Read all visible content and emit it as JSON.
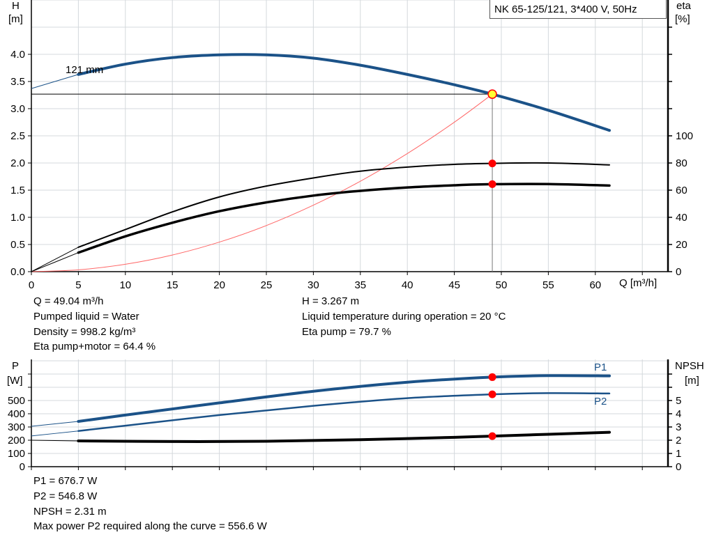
{
  "title": "NK 65-125/121, 3*400 V, 50Hz",
  "colors": {
    "pump_curve": "#1b5288",
    "efficiency": "#000000",
    "system_curve": "#ff6666",
    "marker": "#ff0000",
    "operating_point_fill": "#ffff33",
    "grid": "#d4d8dc"
  },
  "chart_data": [
    {
      "type": "line",
      "xlabel": "Q [m³/h]",
      "ylabel": "H",
      "yunit": "[m]",
      "y2label": "eta",
      "y2unit": "[%]",
      "xlim": [
        0,
        67.5
      ],
      "ylim": [
        0,
        5
      ],
      "y2lim": [
        0,
        200
      ],
      "grid": true,
      "x_ticks": [
        "0",
        "5",
        "10",
        "15",
        "20",
        "25",
        "30",
        "35",
        "40",
        "45",
        "50",
        "55",
        "60"
      ],
      "y_ticks": [
        "0.0",
        "0.5",
        "1.0",
        "1.5",
        "2.0",
        "2.5",
        "3.0",
        "3.5",
        "4.0"
      ],
      "y2_ticks": [
        "0",
        "20",
        "40",
        "60",
        "80",
        "100"
      ],
      "curve_label": "121 mm",
      "series": [
        {
          "id": "head",
          "axis": "left",
          "x": [
            0,
            5,
            10,
            15,
            20,
            25,
            30,
            35,
            40,
            45,
            49.04,
            55,
            61.5
          ],
          "y": [
            3.37,
            3.63,
            3.82,
            3.94,
            3.99,
            3.99,
            3.93,
            3.8,
            3.63,
            3.44,
            3.267,
            2.97,
            2.6
          ]
        },
        {
          "id": "eta_pump",
          "axis": "right",
          "x": [
            0,
            5,
            10,
            15,
            20,
            25,
            30,
            35,
            40,
            45,
            49.04,
            55,
            61.5
          ],
          "y": [
            0,
            18,
            31,
            44,
            55,
            63,
            69,
            74,
            77,
            79,
            79.7,
            80,
            78.6
          ]
        },
        {
          "id": "eta_pump_motor",
          "axis": "right",
          "x": [
            0,
            5,
            10,
            15,
            20,
            25,
            30,
            35,
            40,
            45,
            49.04,
            55,
            61.5
          ],
          "y": [
            0,
            14,
            26,
            36,
            44.5,
            51,
            56,
            59.5,
            62,
            63.6,
            64.4,
            64.5,
            63.4
          ]
        },
        {
          "id": "system_curve",
          "axis": "left",
          "x": [
            0,
            5,
            10,
            15,
            20,
            25,
            30,
            35,
            40,
            45,
            49.04
          ],
          "y": [
            0,
            0.034,
            0.136,
            0.306,
            0.544,
            0.849,
            1.223,
            1.664,
            2.174,
            2.751,
            3.267
          ]
        }
      ],
      "operating_point": {
        "q": 49.04,
        "h": 3.267,
        "eta_pump": 79.7,
        "eta_pump_motor": 64.4
      }
    },
    {
      "type": "line",
      "ylabel": "P",
      "yunit": "[W]",
      "y2label": "NPSH",
      "y2unit": "[m]",
      "xlim": [
        0,
        67.5
      ],
      "ylim": [
        0,
        800
      ],
      "y2lim": [
        0,
        8
      ],
      "grid": true,
      "y_ticks": [
        "0",
        "100",
        "200",
        "300",
        "400",
        "500"
      ],
      "y2_ticks": [
        "0",
        "1",
        "2",
        "3",
        "4",
        "5"
      ],
      "series": [
        {
          "id": "P1",
          "name": "P1",
          "axis": "left",
          "x": [
            0,
            5,
            10,
            20,
            30,
            40,
            49.04,
            55,
            61.5
          ],
          "y": [
            305,
            342,
            390,
            482,
            570,
            638,
            676.7,
            688,
            686
          ]
        },
        {
          "id": "P2",
          "name": "P2",
          "axis": "left",
          "x": [
            0,
            5,
            10,
            20,
            30,
            40,
            49.04,
            55,
            61.5
          ],
          "y": [
            232,
            270,
            310,
            390,
            460,
            518,
            546.8,
            556,
            553
          ]
        },
        {
          "id": "NPSH",
          "axis": "right",
          "x": [
            0,
            5,
            15,
            25,
            35,
            45,
            49.04,
            55,
            61.5
          ],
          "y": [
            2.0,
            1.95,
            1.9,
            1.92,
            2.04,
            2.22,
            2.31,
            2.45,
            2.6
          ]
        }
      ],
      "operating_point": {
        "q": 49.04,
        "p1": 676.7,
        "p2": 546.8,
        "npsh": 2.31
      }
    }
  ],
  "info_top": {
    "q": "Q = 49.04 m³/h",
    "liquid": "Pumped liquid = Water",
    "density": "Density = 998.2 kg/m³",
    "eta_pm": "Eta pump+motor = 64.4 %",
    "h": "H = 3.267 m",
    "temp": "Liquid temperature during operation = 20 °C",
    "eta_p": "Eta pump = 79.7 %"
  },
  "info_bottom": {
    "p1": "P1 = 676.7 W",
    "p2": "P2 = 546.8 W",
    "npsh": "NPSH = 2.31 m",
    "maxp2": "Max power P2 required along the curve = 556.6 W"
  }
}
